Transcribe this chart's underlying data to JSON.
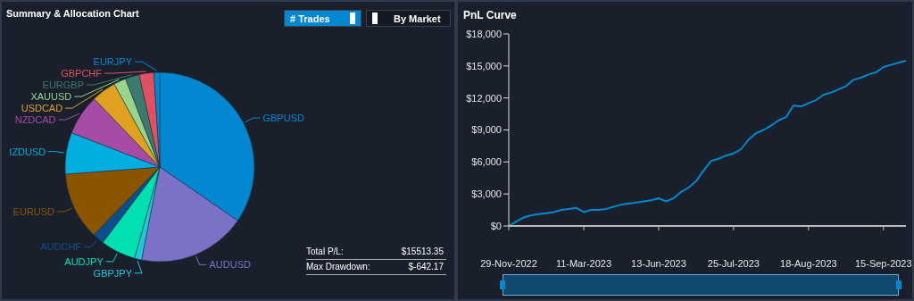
{
  "chart_data": [
    {
      "type": "pie",
      "title": "Summary & Allocation Chart",
      "categories": [
        "GBPUSD",
        "AUDUSD",
        "GBPJPY",
        "AUDJPY",
        "AUDCHF",
        "EURUSD",
        "IZDUSD",
        "NZDCAD",
        "USDCAD",
        "XAUUSD",
        "EURGBP",
        "GBPCHF",
        "EURJPY"
      ],
      "values": [
        34.6,
        18.5,
        1.2,
        6.0,
        2.0,
        11.5,
        7.1,
        6.9,
        4.2,
        2.1,
        2.4,
        2.5,
        1.0
      ],
      "colors": [
        "#0288d1",
        "#7b72c8",
        "#1fc8d8",
        "#00e0b0",
        "#0d4f8b",
        "#8b5500",
        "#00aee0",
        "#a64ca6",
        "#e0a020",
        "#98d48a",
        "#3d7a6e",
        "#e05060",
        "#0288d1"
      ],
      "annotations": [
        "# Trades",
        "By Market",
        "Total P/L:",
        "$15513.35",
        "Max Drawdown:",
        "$-642.17"
      ]
    },
    {
      "type": "line",
      "title": "PnL Curve",
      "categories": [
        "29-Nov-2022",
        null,
        null,
        null,
        null,
        null,
        null,
        null,
        null,
        null,
        "11-Mar-2023",
        null,
        null,
        null,
        null,
        null,
        null,
        null,
        null,
        null,
        "13-Jun-2023",
        null,
        null,
        null,
        null,
        null,
        null,
        null,
        null,
        null,
        "25-Jul-2023",
        null,
        null,
        null,
        null,
        null,
        null,
        null,
        null,
        null,
        "18-Aug-2023",
        null,
        null,
        null,
        null,
        null,
        null,
        null,
        null,
        null,
        "15-Sep-2023",
        null,
        null,
        null
      ],
      "series": [
        {
          "color": "#0288d1",
          "values": [
            0,
            400,
            800,
            1000,
            1100,
            1200,
            1300,
            1500,
            1600,
            1700,
            1300,
            1500,
            1500,
            1600,
            1800,
            2000,
            2100,
            2200,
            2300,
            2400,
            2600,
            2300,
            2600,
            3200,
            3600,
            4200,
            5200,
            6100,
            6300,
            6600,
            6800,
            7200,
            8100,
            8700,
            9000,
            9400,
            9900,
            10200,
            11300,
            11200,
            11500,
            11800,
            12300,
            12500,
            12800,
            13100,
            13700,
            13900,
            14200,
            14400,
            14900,
            15100,
            15300,
            15500
          ]
        }
      ],
      "ylim": [
        0,
        18000
      ],
      "yticks": [
        {
          "value": 0,
          "label": "$0"
        },
        {
          "value": 3000,
          "label": "$3,000"
        },
        {
          "value": 6000,
          "label": "$6,000"
        },
        {
          "value": 9000,
          "label": "$9,000"
        },
        {
          "value": 12000,
          "label": "$12,000"
        },
        {
          "value": 15000,
          "label": "$15,000"
        },
        {
          "value": 18000,
          "label": "$18,000"
        }
      ]
    }
  ]
}
